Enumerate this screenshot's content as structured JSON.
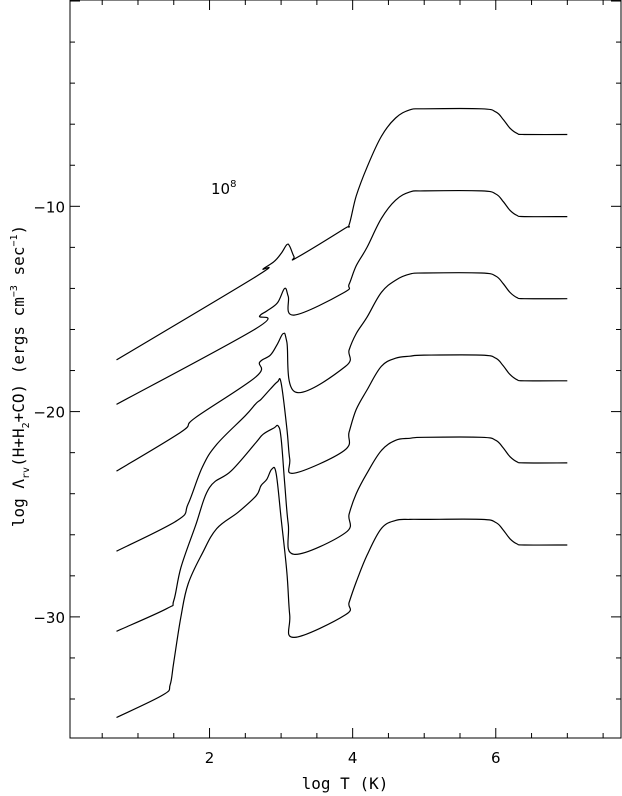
{
  "chart_data": {
    "type": "line",
    "xlabel": "log T (K)",
    "ylabel_parts": {
      "pre": "log Λ",
      "sub1": "rv",
      "mid1": "(H+H",
      "sub2": "2",
      "mid2": "+CO) (ergs cm",
      "sup1": "−3",
      "mid3": " sec",
      "sup2": "−1",
      "post": ")"
    },
    "xlim": [
      0.05,
      7.75
    ],
    "ylim": [
      -35.9,
      0.05
    ],
    "x_ticks": [
      "2",
      "4",
      "6"
    ],
    "y_ticks": [
      "−10",
      "−20",
      "−30"
    ],
    "annotation": {
      "base": "10",
      "exp": "8"
    },
    "series": [
      {
        "values": [
          [
            0.7,
            -17.48
          ],
          [
            2.65,
            -13.42
          ],
          [
            2.75,
            -13.05
          ],
          [
            2.9,
            -12.7
          ],
          [
            3.0,
            -12.3
          ],
          [
            3.08,
            -11.87
          ],
          [
            3.12,
            -11.95
          ],
          [
            3.18,
            -12.45
          ],
          [
            3.22,
            -12.5
          ],
          [
            3.88,
            -11.1
          ],
          [
            3.95,
            -10.9
          ],
          [
            4.05,
            -9.5
          ],
          [
            4.2,
            -8.1
          ],
          [
            4.4,
            -6.6
          ],
          [
            4.6,
            -5.7
          ],
          [
            4.8,
            -5.3
          ],
          [
            5.0,
            -5.25
          ],
          [
            5.8,
            -5.25
          ],
          [
            6.0,
            -5.4
          ],
          [
            6.1,
            -5.75
          ],
          [
            6.2,
            -6.2
          ],
          [
            6.3,
            -6.45
          ],
          [
            6.4,
            -6.5
          ],
          [
            7.0,
            -6.5
          ]
        ]
      },
      {
        "values": [
          [
            0.7,
            -19.65
          ],
          [
            2.65,
            -15.95
          ],
          [
            2.7,
            -15.35
          ],
          [
            2.8,
            -15.1
          ],
          [
            2.95,
            -14.7
          ],
          [
            3.05,
            -14.0
          ],
          [
            3.1,
            -14.4
          ],
          [
            3.18,
            -15.3
          ],
          [
            3.88,
            -14.2
          ],
          [
            3.95,
            -13.8
          ],
          [
            4.05,
            -12.9
          ],
          [
            4.2,
            -12.0
          ],
          [
            4.4,
            -10.6
          ],
          [
            4.6,
            -9.7
          ],
          [
            4.8,
            -9.3
          ],
          [
            5.0,
            -9.25
          ],
          [
            5.8,
            -9.25
          ],
          [
            6.0,
            -9.4
          ],
          [
            6.1,
            -9.75
          ],
          [
            6.2,
            -10.2
          ],
          [
            6.3,
            -10.45
          ],
          [
            6.4,
            -10.5
          ],
          [
            7.0,
            -10.5
          ]
        ]
      },
      {
        "values": [
          [
            0.7,
            -22.9
          ],
          [
            1.6,
            -21.0
          ],
          [
            1.8,
            -20.3
          ],
          [
            2.65,
            -18.3
          ],
          [
            2.7,
            -17.6
          ],
          [
            2.85,
            -17.25
          ],
          [
            2.95,
            -16.7
          ],
          [
            3.03,
            -16.2
          ],
          [
            3.08,
            -16.6
          ],
          [
            3.2,
            -19.05
          ],
          [
            3.9,
            -17.8
          ],
          [
            3.95,
            -17.0
          ],
          [
            4.05,
            -16.2
          ],
          [
            4.2,
            -15.4
          ],
          [
            4.4,
            -14.2
          ],
          [
            4.6,
            -13.6
          ],
          [
            4.8,
            -13.3
          ],
          [
            5.0,
            -13.25
          ],
          [
            5.8,
            -13.25
          ],
          [
            6.0,
            -13.4
          ],
          [
            6.1,
            -13.75
          ],
          [
            6.2,
            -14.2
          ],
          [
            6.3,
            -14.45
          ],
          [
            6.4,
            -14.5
          ],
          [
            7.0,
            -14.5
          ]
        ]
      },
      {
        "values": [
          [
            0.7,
            -26.8
          ],
          [
            1.55,
            -25.3
          ],
          [
            1.7,
            -24.5
          ],
          [
            1.9,
            -22.7
          ],
          [
            2.1,
            -21.6
          ],
          [
            2.5,
            -20.2
          ],
          [
            2.65,
            -19.6
          ],
          [
            2.72,
            -19.4
          ],
          [
            2.85,
            -18.9
          ],
          [
            2.95,
            -18.55
          ],
          [
            3.0,
            -18.6
          ],
          [
            3.08,
            -20.8
          ],
          [
            3.12,
            -22.3
          ],
          [
            3.18,
            -23.0
          ],
          [
            3.88,
            -21.9
          ],
          [
            3.95,
            -21.0
          ],
          [
            4.05,
            -19.9
          ],
          [
            4.2,
            -18.95
          ],
          [
            4.4,
            -17.8
          ],
          [
            4.6,
            -17.4
          ],
          [
            4.8,
            -17.3
          ],
          [
            5.0,
            -17.25
          ],
          [
            5.8,
            -17.25
          ],
          [
            6.0,
            -17.4
          ],
          [
            6.1,
            -17.75
          ],
          [
            6.2,
            -18.2
          ],
          [
            6.3,
            -18.45
          ],
          [
            6.4,
            -18.5
          ],
          [
            7.0,
            -18.5
          ]
        ]
      },
      {
        "values": [
          [
            0.7,
            -30.7
          ],
          [
            1.4,
            -29.6
          ],
          [
            1.5,
            -29.2
          ],
          [
            1.6,
            -27.6
          ],
          [
            1.8,
            -25.6
          ],
          [
            2.0,
            -23.7
          ],
          [
            2.3,
            -22.9
          ],
          [
            2.65,
            -21.5
          ],
          [
            2.75,
            -21.1
          ],
          [
            2.9,
            -20.8
          ],
          [
            2.96,
            -20.7
          ],
          [
            3.0,
            -21.3
          ],
          [
            3.05,
            -23.5
          ],
          [
            3.1,
            -25.5
          ],
          [
            3.18,
            -26.95
          ],
          [
            3.9,
            -25.9
          ],
          [
            3.95,
            -25.0
          ],
          [
            4.05,
            -24.0
          ],
          [
            4.2,
            -23.0
          ],
          [
            4.4,
            -21.9
          ],
          [
            4.6,
            -21.4
          ],
          [
            4.8,
            -21.3
          ],
          [
            5.0,
            -21.25
          ],
          [
            5.8,
            -21.25
          ],
          [
            6.0,
            -21.4
          ],
          [
            6.1,
            -21.75
          ],
          [
            6.2,
            -22.2
          ],
          [
            6.3,
            -22.45
          ],
          [
            6.4,
            -22.5
          ],
          [
            7.0,
            -22.5
          ]
        ]
      },
      {
        "values": [
          [
            0.7,
            -34.9
          ],
          [
            1.35,
            -33.8
          ],
          [
            1.45,
            -33.3
          ],
          [
            1.5,
            -32.2
          ],
          [
            1.6,
            -30.0
          ],
          [
            1.7,
            -28.4
          ],
          [
            1.9,
            -26.9
          ],
          [
            2.1,
            -25.7
          ],
          [
            2.4,
            -24.9
          ],
          [
            2.65,
            -24.1
          ],
          [
            2.72,
            -23.6
          ],
          [
            2.8,
            -23.3
          ],
          [
            2.87,
            -22.8
          ],
          [
            2.93,
            -23.0
          ],
          [
            3.0,
            -25.2
          ],
          [
            3.08,
            -27.8
          ],
          [
            3.12,
            -29.9
          ],
          [
            3.18,
            -31.0
          ],
          [
            3.9,
            -29.9
          ],
          [
            3.95,
            -29.3
          ],
          [
            4.05,
            -28.3
          ],
          [
            4.2,
            -27.0
          ],
          [
            4.4,
            -25.7
          ],
          [
            4.6,
            -25.3
          ],
          [
            4.8,
            -25.25
          ],
          [
            5.0,
            -25.25
          ],
          [
            5.8,
            -25.25
          ],
          [
            6.0,
            -25.4
          ],
          [
            6.1,
            -25.75
          ],
          [
            6.2,
            -26.2
          ],
          [
            6.3,
            -26.45
          ],
          [
            6.4,
            -26.5
          ],
          [
            7.0,
            -26.5
          ]
        ]
      }
    ]
  }
}
